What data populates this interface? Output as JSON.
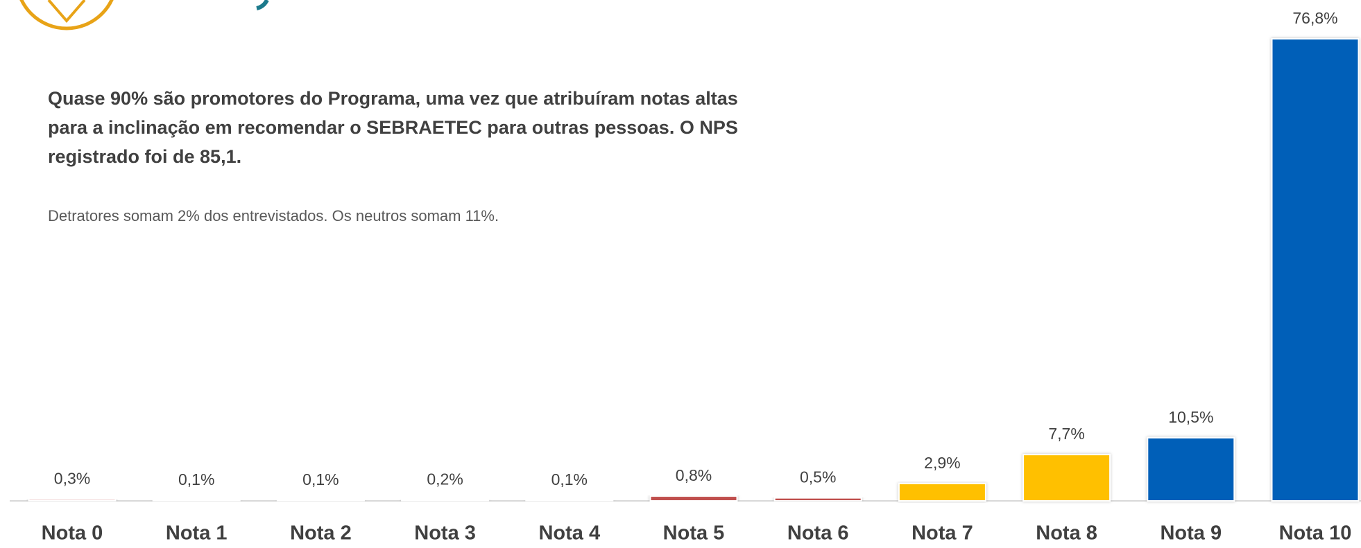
{
  "chart_data": {
    "type": "bar",
    "title_lines": [
      "Quase 90% são promotores do Programa, uma vez que atribuíram notas altas",
      "para a inclinação em recomendar o SEBRAETEC para outras pessoas. O NPS",
      "registrado foi de 85,1."
    ],
    "subtitle": "Detratores somam 2% dos entrevistados. Os neutros somam 11%.",
    "categories": [
      "Nota 0",
      "Nota 1",
      "Nota 2",
      "Nota 3",
      "Nota 4",
      "Nota 5",
      "Nota 6",
      "Nota 7",
      "Nota 8",
      "Nota 9",
      "Nota 10"
    ],
    "values": [
      0.3,
      0.1,
      0.1,
      0.2,
      0.1,
      0.8,
      0.5,
      2.9,
      7.7,
      10.5,
      76.8
    ],
    "value_labels": [
      "0,3%",
      "0,1%",
      "0,1%",
      "0,2%",
      "0,1%",
      "0,8%",
      "0,5%",
      "2,9%",
      "7,7%",
      "10,5%",
      "76,8%"
    ],
    "colors": [
      "#e8b7b6",
      "#e6e6e6",
      "#e6e6e6",
      "#e6e6e6",
      "#e6e6e6",
      "#c0504d",
      "#c0504d",
      "#ffc000",
      "#ffc000",
      "#005eb8",
      "#005eb8"
    ]
  }
}
